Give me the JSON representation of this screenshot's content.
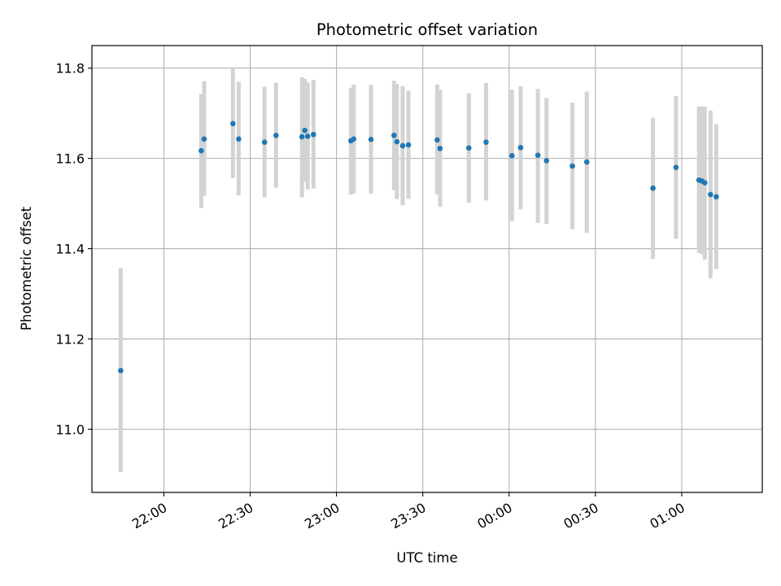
{
  "chart_data": {
    "type": "scatter",
    "title": "Photometric offset variation",
    "xlabel": "UTC time",
    "ylabel": "Photometric offset",
    "x_axis": {
      "type": "time",
      "range": [
        "21:35",
        "01:28"
      ],
      "tick_values": [
        "22:00",
        "22:30",
        "23:00",
        "23:30",
        "00:00",
        "00:30",
        "01:00"
      ],
      "tick_labels": [
        "22:00",
        "22:30",
        "23:00",
        "23:30",
        "00:00",
        "00:30",
        "01:00"
      ]
    },
    "y_axis": {
      "range": [
        10.86,
        11.85
      ],
      "tick_values": [
        11.0,
        11.2,
        11.4,
        11.6,
        11.8
      ],
      "tick_labels": [
        "11.0",
        "11.2",
        "11.4",
        "11.6",
        "11.8"
      ]
    },
    "grid": true,
    "colors": {
      "point": "#1f77b4",
      "errorbar": "#d3d3d3",
      "grid": "#b0b0b0"
    },
    "points": [
      {
        "x": "21:45",
        "y": 11.13,
        "ylow": 10.905,
        "yhigh": 11.357
      },
      {
        "x": "22:13",
        "y": 11.617,
        "ylow": 11.49,
        "yhigh": 11.743
      },
      {
        "x": "22:14",
        "y": 11.643,
        "ylow": 11.517,
        "yhigh": 11.771
      },
      {
        "x": "22:24",
        "y": 11.677,
        "ylow": 11.556,
        "yhigh": 11.8
      },
      {
        "x": "22:26",
        "y": 11.643,
        "ylow": 11.518,
        "yhigh": 11.77
      },
      {
        "x": "22:35",
        "y": 11.636,
        "ylow": 11.514,
        "yhigh": 11.759
      },
      {
        "x": "22:39",
        "y": 11.651,
        "ylow": 11.535,
        "yhigh": 11.768
      },
      {
        "x": "22:48",
        "y": 11.648,
        "ylow": 11.514,
        "yhigh": 11.78
      },
      {
        "x": "22:49",
        "y": 11.662,
        "ylow": 11.548,
        "yhigh": 11.776
      },
      {
        "x": "22:50",
        "y": 11.649,
        "ylow": 11.531,
        "yhigh": 11.768
      },
      {
        "x": "22:52",
        "y": 11.653,
        "ylow": 11.533,
        "yhigh": 11.774
      },
      {
        "x": "23:05",
        "y": 11.639,
        "ylow": 11.52,
        "yhigh": 11.756
      },
      {
        "x": "23:06",
        "y": 11.643,
        "ylow": 11.522,
        "yhigh": 11.764
      },
      {
        "x": "23:12",
        "y": 11.642,
        "ylow": 11.522,
        "yhigh": 11.763
      },
      {
        "x": "23:20",
        "y": 11.651,
        "ylow": 11.53,
        "yhigh": 11.772
      },
      {
        "x": "23:21",
        "y": 11.637,
        "ylow": 11.51,
        "yhigh": 11.765
      },
      {
        "x": "23:23",
        "y": 11.628,
        "ylow": 11.496,
        "yhigh": 11.76
      },
      {
        "x": "23:25",
        "y": 11.63,
        "ylow": 11.51,
        "yhigh": 11.75
      },
      {
        "x": "23:35",
        "y": 11.641,
        "ylow": 11.52,
        "yhigh": 11.764
      },
      {
        "x": "23:36",
        "y": 11.622,
        "ylow": 11.493,
        "yhigh": 11.752
      },
      {
        "x": "23:46",
        "y": 11.623,
        "ylow": 11.502,
        "yhigh": 11.744
      },
      {
        "x": "23:52",
        "y": 11.636,
        "ylow": 11.507,
        "yhigh": 11.767
      },
      {
        "x": "00:01",
        "y": 11.606,
        "ylow": 11.461,
        "yhigh": 11.752
      },
      {
        "x": "00:04",
        "y": 11.624,
        "ylow": 11.487,
        "yhigh": 11.76
      },
      {
        "x": "00:10",
        "y": 11.607,
        "ylow": 11.457,
        "yhigh": 11.754
      },
      {
        "x": "00:13",
        "y": 11.595,
        "ylow": 11.455,
        "yhigh": 11.734
      },
      {
        "x": "00:22",
        "y": 11.583,
        "ylow": 11.443,
        "yhigh": 11.724
      },
      {
        "x": "00:27",
        "y": 11.592,
        "ylow": 11.435,
        "yhigh": 11.748
      },
      {
        "x": "00:50",
        "y": 11.534,
        "ylow": 11.377,
        "yhigh": 11.69
      },
      {
        "x": "00:58",
        "y": 11.58,
        "ylow": 11.422,
        "yhigh": 11.738
      },
      {
        "x": "01:06",
        "y": 11.552,
        "ylow": 11.39,
        "yhigh": 11.715
      },
      {
        "x": "01:07",
        "y": 11.55,
        "ylow": 11.388,
        "yhigh": 11.715
      },
      {
        "x": "01:08",
        "y": 11.546,
        "ylow": 11.376,
        "yhigh": 11.715
      },
      {
        "x": "01:10",
        "y": 11.52,
        "ylow": 11.334,
        "yhigh": 11.706
      },
      {
        "x": "01:12",
        "y": 11.515,
        "ylow": 11.355,
        "yhigh": 11.676
      }
    ]
  }
}
